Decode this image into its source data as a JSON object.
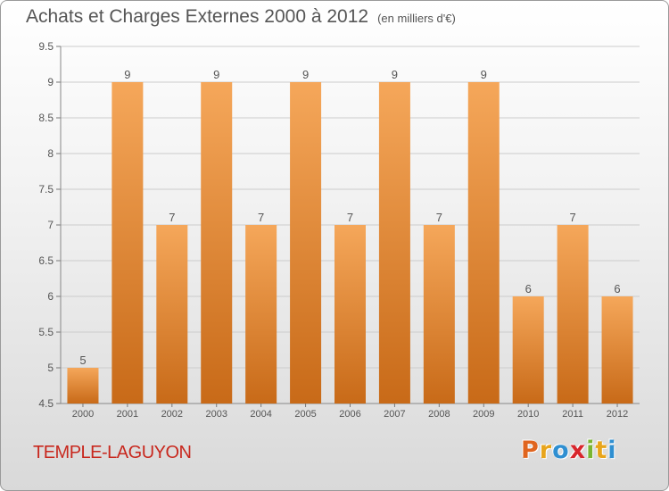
{
  "header": {
    "title": "Achats et Charges Externes 2000 à 2012",
    "unit": "(en milliers d'€)"
  },
  "footer": {
    "place": "TEMPLE-LAGUYON",
    "brand": "Proxiti"
  },
  "colors": {
    "bar_top": "#f5a75a",
    "bar_bottom": "#c86a18",
    "place_text": "#c8281e",
    "grid": "#cccccc"
  },
  "chart_data": {
    "type": "bar",
    "title": "Achats et Charges Externes 2000 à 2012",
    "subtitle": "(en milliers d'€)",
    "categories": [
      "2000",
      "2001",
      "2002",
      "2003",
      "2004",
      "2005",
      "2006",
      "2007",
      "2008",
      "2009",
      "2010",
      "2011",
      "2012"
    ],
    "values": [
      5,
      9,
      7,
      9,
      7,
      9,
      7,
      9,
      7,
      9,
      6,
      7,
      6
    ],
    "data_labels": [
      "5",
      "9",
      "7",
      "9",
      "7",
      "9",
      "7",
      "9",
      "7",
      "9",
      "6",
      "7",
      "6"
    ],
    "yticks": [
      4.5,
      5,
      5.5,
      6,
      6.5,
      7,
      7.5,
      8,
      8.5,
      9,
      9.5
    ],
    "ytick_labels": [
      "4.5",
      "5",
      "5.5",
      "6",
      "6.5",
      "7",
      "7.5",
      "8",
      "8.5",
      "9",
      "9.5"
    ],
    "ylim": [
      4.5,
      9.5
    ],
    "grid": "horizontal",
    "xlabel": "",
    "ylabel": ""
  }
}
